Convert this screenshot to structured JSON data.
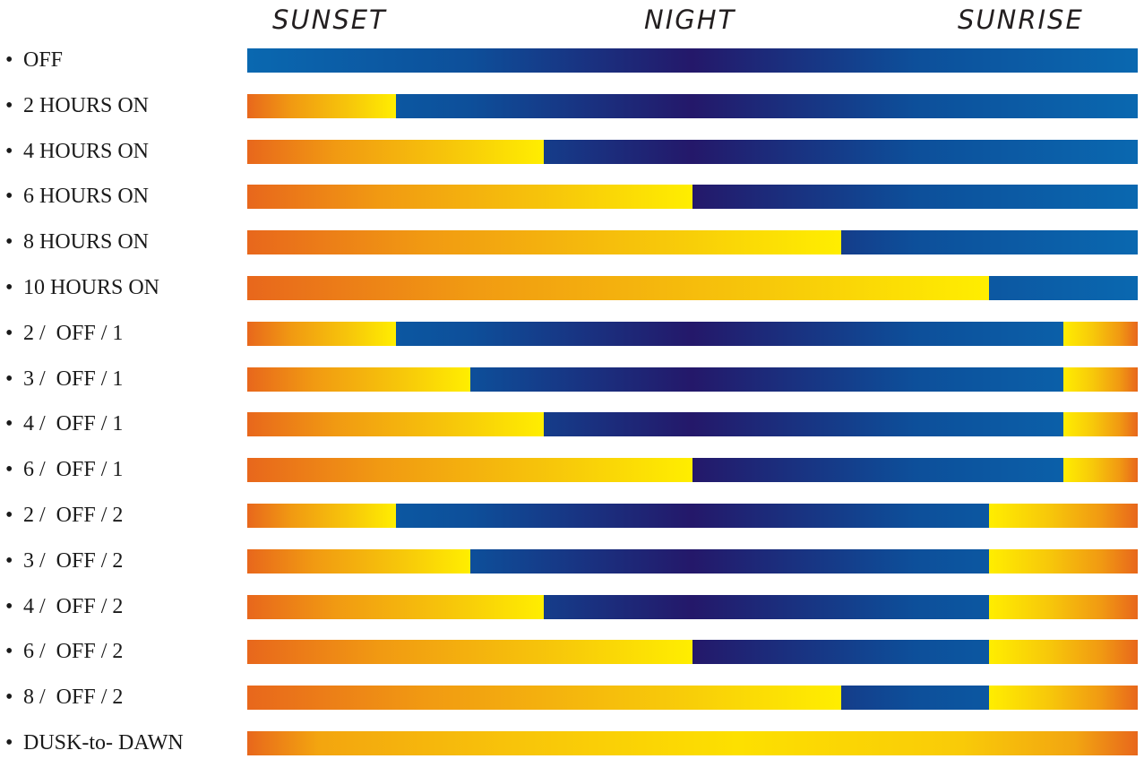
{
  "headers": {
    "sunset": "SUNSET",
    "night": "NIGHT",
    "sunrise": "SUNRISE"
  },
  "bullet": "•",
  "rows": [
    {
      "label": "OFF",
      "hours_on_after_sunset": 0,
      "hours_on_before_sunrise": 0
    },
    {
      "label": "2 HOURS ON",
      "hours_on_after_sunset": 2,
      "hours_on_before_sunrise": 0
    },
    {
      "label": "4 HOURS ON",
      "hours_on_after_sunset": 4,
      "hours_on_before_sunrise": 0
    },
    {
      "label": "6 HOURS ON",
      "hours_on_after_sunset": 6,
      "hours_on_before_sunrise": 0
    },
    {
      "label": "8 HOURS ON",
      "hours_on_after_sunset": 8,
      "hours_on_before_sunrise": 0
    },
    {
      "label": "10 HOURS ON",
      "hours_on_after_sunset": 10,
      "hours_on_before_sunrise": 0
    },
    {
      "label": "2 /  OFF / 1",
      "hours_on_after_sunset": 2,
      "hours_on_before_sunrise": 1
    },
    {
      "label": "3 /  OFF / 1",
      "hours_on_after_sunset": 3,
      "hours_on_before_sunrise": 1
    },
    {
      "label": "4 /  OFF / 1",
      "hours_on_after_sunset": 4,
      "hours_on_before_sunrise": 1
    },
    {
      "label": "6 /  OFF / 1",
      "hours_on_after_sunset": 6,
      "hours_on_before_sunrise": 1
    },
    {
      "label": "2 /  OFF / 2",
      "hours_on_after_sunset": 2,
      "hours_on_before_sunrise": 2
    },
    {
      "label": "3 /  OFF / 2",
      "hours_on_after_sunset": 3,
      "hours_on_before_sunrise": 2
    },
    {
      "label": "4 /  OFF / 2",
      "hours_on_after_sunset": 4,
      "hours_on_before_sunrise": 2
    },
    {
      "label": "6 /  OFF / 2",
      "hours_on_after_sunset": 6,
      "hours_on_before_sunrise": 2
    },
    {
      "label": "8 /  OFF / 2",
      "hours_on_after_sunset": 8,
      "hours_on_before_sunrise": 2
    },
    {
      "label": "DUSK-to- DAWN",
      "hours_on_after_sunset": 12,
      "hours_on_before_sunrise": 0
    }
  ],
  "colors": {
    "on_orange": "#e8671c",
    "on_yellow": "#ffee00",
    "off_blue": "#0a68b0",
    "off_navy": "#24186a"
  }
}
